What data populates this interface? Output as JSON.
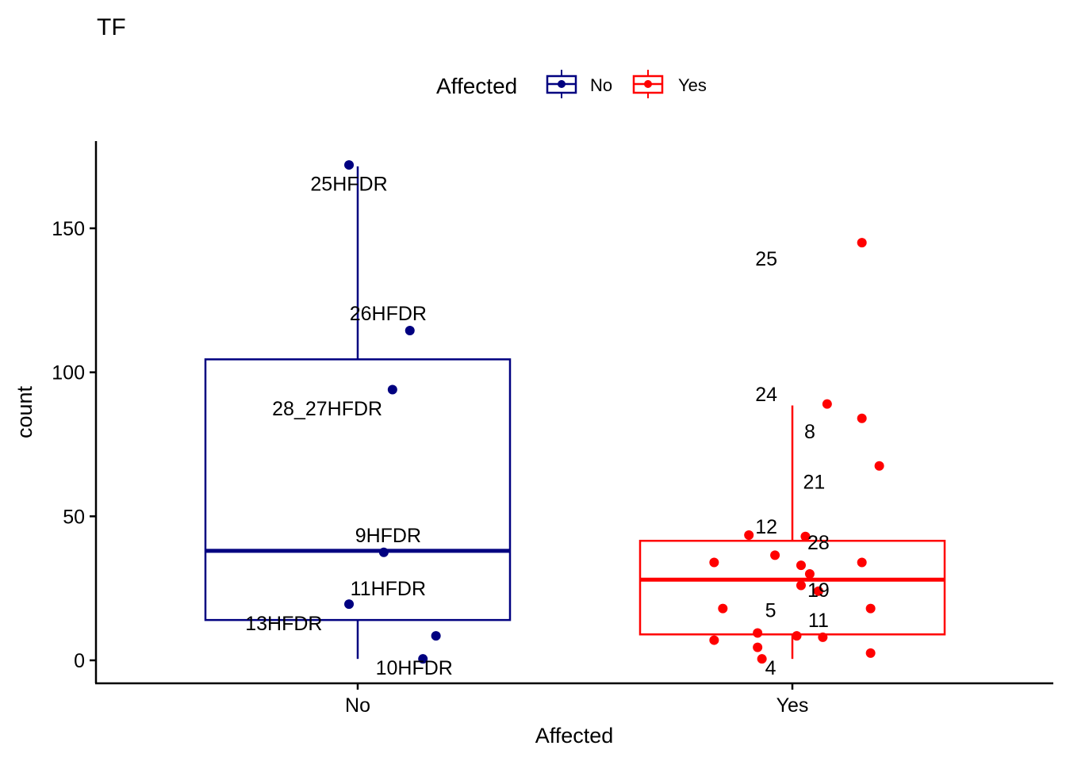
{
  "chart_data": {
    "type": "boxplot",
    "title": "TF",
    "xlabel": "Affected",
    "ylabel": "count",
    "ylim": [
      -8,
      180
    ],
    "yticks": [
      0,
      50,
      100,
      150
    ],
    "grid": false,
    "legend": {
      "title": "Affected",
      "placement": "top",
      "entries": [
        {
          "label": "No",
          "color": "#000080"
        },
        {
          "label": "Yes",
          "color": "#ff0000"
        }
      ]
    },
    "categories": [
      "No",
      "Yes"
    ],
    "groups": [
      {
        "name": "No",
        "color": "#000080",
        "box": {
          "whisker_low": 0.5,
          "q1": 14,
          "median": 38,
          "q3": 104.5,
          "whisker_high": 171.5
        },
        "points": [
          {
            "x": -0.02,
            "y": 172
          },
          {
            "x": 0.12,
            "y": 114.5
          },
          {
            "x": 0.08,
            "y": 94
          },
          {
            "x": 0.06,
            "y": 37.5
          },
          {
            "x": -0.02,
            "y": 19.5
          },
          {
            "x": 0.18,
            "y": 8.5
          },
          {
            "x": 0.15,
            "y": 0.5
          }
        ],
        "labels": [
          {
            "text": "25HFDR",
            "x": -0.02,
            "y": 165.5
          },
          {
            "text": "26HFDR",
            "x": 0.07,
            "y": 120.5
          },
          {
            "text": "28_27HFDR",
            "x": -0.07,
            "y": 87.5
          },
          {
            "text": "9HFDR",
            "x": 0.07,
            "y": 43.5
          },
          {
            "text": "11HFDR",
            "x": 0.07,
            "y": 25
          },
          {
            "text": "13HFDR",
            "x": -0.17,
            "y": 13
          },
          {
            "text": "10HFDR",
            "x": 0.13,
            "y": -2.5
          }
        ]
      },
      {
        "name": "Yes",
        "color": "#ff0000",
        "box": {
          "whisker_low": 0.5,
          "q1": 9,
          "median": 28,
          "q3": 41.5,
          "whisker_high": 88.5
        },
        "points": [
          {
            "x": 0.16,
            "y": 145
          },
          {
            "x": 0.08,
            "y": 89
          },
          {
            "x": 0.16,
            "y": 84
          },
          {
            "x": 0.2,
            "y": 67.5
          },
          {
            "x": -0.1,
            "y": 43.5
          },
          {
            "x": 0.03,
            "y": 43
          },
          {
            "x": -0.04,
            "y": 36.5
          },
          {
            "x": -0.18,
            "y": 34
          },
          {
            "x": 0.02,
            "y": 33
          },
          {
            "x": 0.16,
            "y": 34
          },
          {
            "x": 0.04,
            "y": 30
          },
          {
            "x": 0.02,
            "y": 26
          },
          {
            "x": 0.06,
            "y": 24
          },
          {
            "x": -0.16,
            "y": 18
          },
          {
            "x": 0.18,
            "y": 18
          },
          {
            "x": -0.08,
            "y": 9.5
          },
          {
            "x": 0.01,
            "y": 8.5
          },
          {
            "x": 0.07,
            "y": 8
          },
          {
            "x": -0.18,
            "y": 7
          },
          {
            "x": -0.08,
            "y": 4.5
          },
          {
            "x": -0.07,
            "y": 0.5
          },
          {
            "x": 0.18,
            "y": 2.5
          }
        ],
        "labels": [
          {
            "text": "25",
            "x": -0.06,
            "y": 139.5
          },
          {
            "text": "24",
            "x": -0.06,
            "y": 92.5
          },
          {
            "text": "8",
            "x": 0.04,
            "y": 79.5
          },
          {
            "text": "21",
            "x": 0.05,
            "y": 62
          },
          {
            "text": "12",
            "x": -0.06,
            "y": 46.5
          },
          {
            "text": "28",
            "x": 0.06,
            "y": 41
          },
          {
            "text": "19",
            "x": 0.06,
            "y": 24.5
          },
          {
            "text": "5",
            "x": -0.05,
            "y": 17.5
          },
          {
            "text": "11",
            "x": 0.06,
            "y": 14
          },
          {
            "text": "4",
            "x": -0.05,
            "y": -2.5
          }
        ]
      }
    ]
  }
}
